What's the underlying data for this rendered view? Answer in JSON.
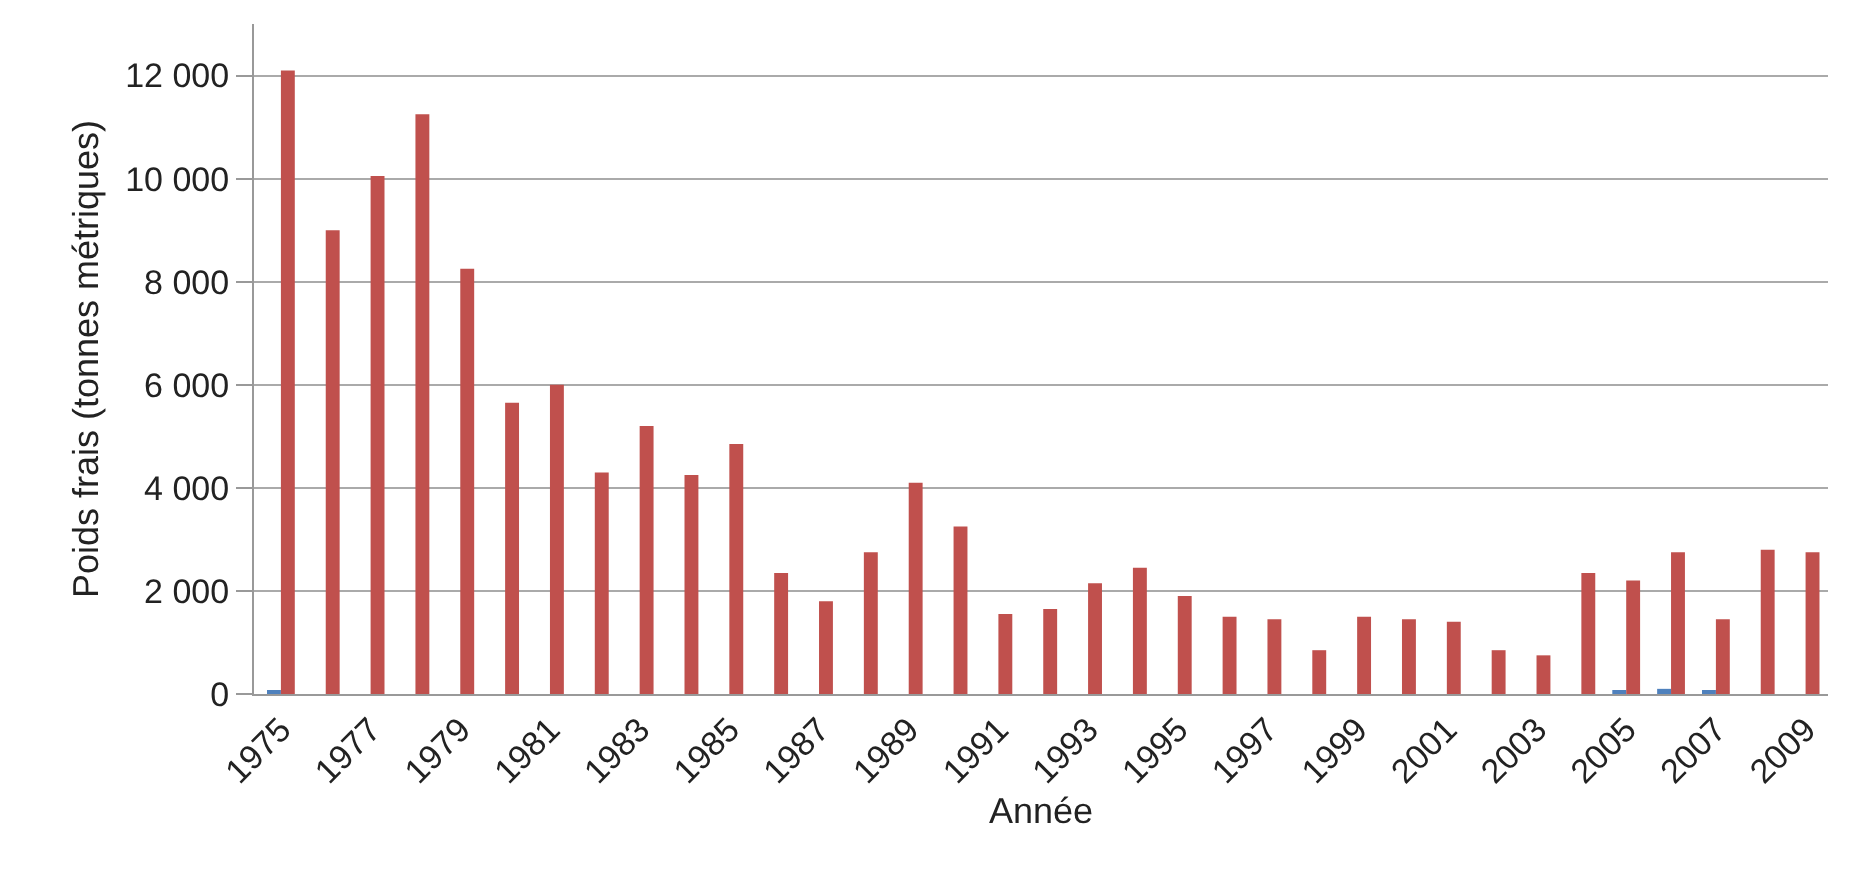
{
  "chart_data": {
    "type": "bar",
    "xlabel": "Année",
    "ylabel": "Poids frais (tonnes métriques)",
    "categories": [
      "1975",
      null,
      "1977",
      null,
      "1979",
      null,
      "1981",
      null,
      "1983",
      null,
      "1985",
      null,
      "1987",
      null,
      "1989",
      null,
      "1991",
      null,
      "1993",
      null,
      "1995",
      null,
      "1997",
      null,
      "1999",
      null,
      "2001",
      null,
      "2003",
      null,
      "2005",
      null,
      "2007",
      null,
      "2009"
    ],
    "series": [
      {
        "color": "#4f81bd",
        "values": [
          40,
          0,
          0,
          0,
          0,
          0,
          0,
          0,
          0,
          0,
          0,
          0,
          0,
          0,
          0,
          0,
          0,
          0,
          0,
          0,
          0,
          0,
          0,
          0,
          0,
          0,
          0,
          0,
          0,
          0,
          40,
          100,
          60,
          0,
          0
        ]
      },
      {
        "color": "#c0504d",
        "values": [
          12100,
          9000,
          10050,
          11250,
          8250,
          5650,
          6000,
          4300,
          5200,
          4250,
          4850,
          2350,
          1800,
          2750,
          4100,
          3250,
          1550,
          1650,
          2150,
          2450,
          1900,
          1500,
          1450,
          850,
          1500,
          1450,
          1400,
          850,
          750,
          2350,
          2200,
          2750,
          1450,
          2800,
          2750
        ]
      }
    ],
    "ylim": [
      0,
      13000
    ],
    "yticks": [
      {
        "value": 0,
        "label": "0"
      },
      {
        "value": 2000,
        "label": "2 000"
      },
      {
        "value": 4000,
        "label": "4 000"
      },
      {
        "value": 6000,
        "label": "6 000"
      },
      {
        "value": 8000,
        "label": "8 000"
      },
      {
        "value": 10000,
        "label": "10 000"
      },
      {
        "value": 12000,
        "label": "12 000"
      }
    ],
    "grid": "y"
  }
}
